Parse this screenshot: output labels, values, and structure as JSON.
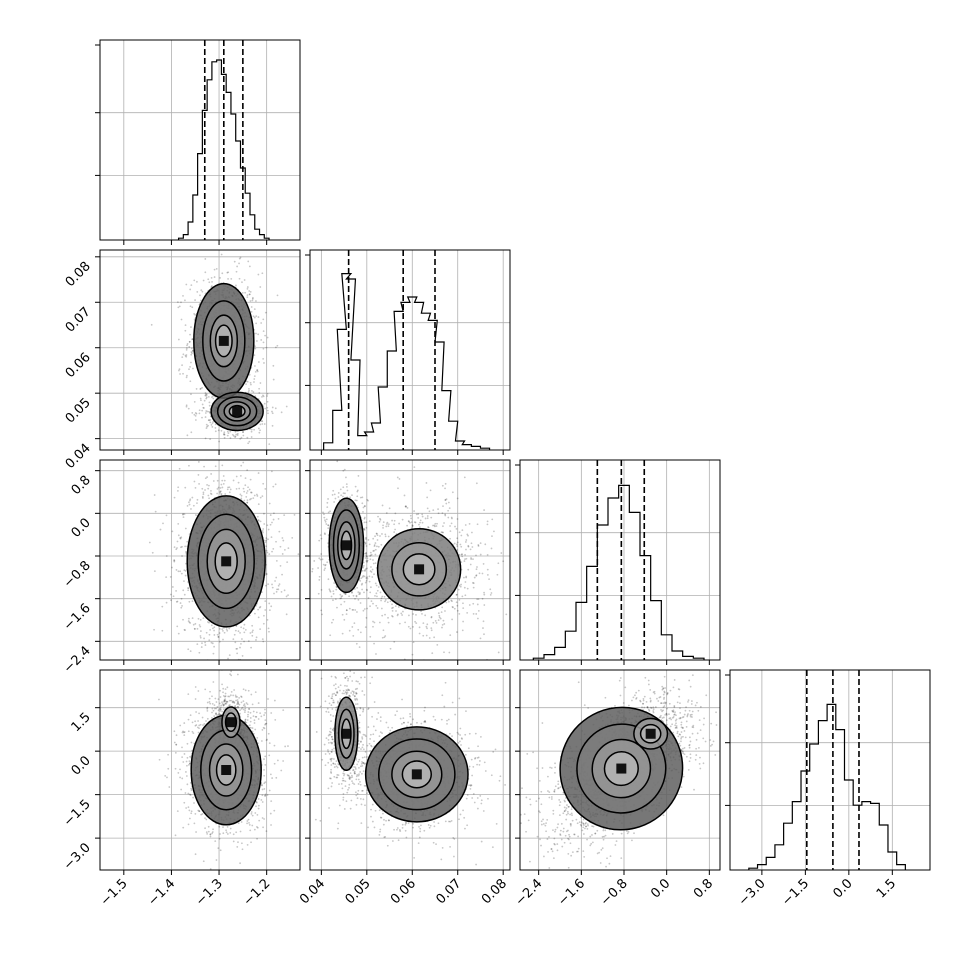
{
  "chart_data": {
    "type": "corner",
    "grid": true,
    "parameters": [
      {
        "ticks": [
          -1.5,
          -1.4,
          -1.3,
          -1.2
        ],
        "tick_labels": [
          "−1.5",
          "−1.4",
          "−1.3",
          "−1.2"
        ],
        "range": [
          -1.55,
          -1.13
        ],
        "quantiles": [
          -1.33,
          -1.29,
          -1.25
        ],
        "hist": [
          {
            "x": -1.38,
            "y": 0.01
          },
          {
            "x": -1.37,
            "y": 0.03
          },
          {
            "x": -1.36,
            "y": 0.1
          },
          {
            "x": -1.35,
            "y": 0.25
          },
          {
            "x": -1.34,
            "y": 0.48
          },
          {
            "x": -1.33,
            "y": 0.72
          },
          {
            "x": -1.32,
            "y": 0.89
          },
          {
            "x": -1.31,
            "y": 0.99
          },
          {
            "x": -1.3,
            "y": 1.0
          },
          {
            "x": -1.29,
            "y": 0.92
          },
          {
            "x": -1.28,
            "y": 0.82
          },
          {
            "x": -1.27,
            "y": 0.7
          },
          {
            "x": -1.26,
            "y": 0.55
          },
          {
            "x": -1.25,
            "y": 0.4
          },
          {
            "x": -1.24,
            "y": 0.26
          },
          {
            "x": -1.23,
            "y": 0.14
          },
          {
            "x": -1.22,
            "y": 0.06
          },
          {
            "x": -1.21,
            "y": 0.03
          },
          {
            "x": -1.2,
            "y": 0.01
          }
        ]
      },
      {
        "ticks": [
          0.04,
          0.05,
          0.06,
          0.07,
          0.08
        ],
        "tick_labels": [
          "0.04",
          "0.05",
          "0.06",
          "0.07",
          "0.08"
        ],
        "range": [
          0.0375,
          0.0815
        ],
        "quantiles": [
          0.046,
          0.058,
          0.065
        ],
        "hist": [
          {
            "x": 0.0415,
            "y": 0.04
          },
          {
            "x": 0.0435,
            "y": 0.22
          },
          {
            "x": 0.0445,
            "y": 0.67
          },
          {
            "x": 0.0455,
            "y": 0.98
          },
          {
            "x": 0.0465,
            "y": 0.95
          },
          {
            "x": 0.0475,
            "y": 0.5
          },
          {
            "x": 0.049,
            "y": 0.08
          },
          {
            "x": 0.0505,
            "y": 0.1
          },
          {
            "x": 0.052,
            "y": 0.15
          },
          {
            "x": 0.0535,
            "y": 0.35
          },
          {
            "x": 0.0555,
            "y": 0.55
          },
          {
            "x": 0.057,
            "y": 0.77
          },
          {
            "x": 0.0585,
            "y": 0.82
          },
          {
            "x": 0.06,
            "y": 0.85
          },
          {
            "x": 0.0615,
            "y": 0.82
          },
          {
            "x": 0.063,
            "y": 0.76
          },
          {
            "x": 0.0645,
            "y": 0.72
          },
          {
            "x": 0.066,
            "y": 0.6
          },
          {
            "x": 0.0675,
            "y": 0.33
          },
          {
            "x": 0.069,
            "y": 0.16
          },
          {
            "x": 0.0705,
            "y": 0.05
          },
          {
            "x": 0.072,
            "y": 0.03
          },
          {
            "x": 0.074,
            "y": 0.02
          },
          {
            "x": 0.076,
            "y": 0.01
          }
        ]
      },
      {
        "ticks": [
          -2.4,
          -1.6,
          -0.8,
          0.0,
          0.8
        ],
        "tick_labels": [
          "−2.4",
          "−1.6",
          "−0.8",
          "0.0",
          "0.8"
        ],
        "range": [
          -2.75,
          1.0
        ],
        "quantiles": [
          -1.3,
          -0.85,
          -0.42
        ],
        "hist": [
          {
            "x": -2.4,
            "y": 0.01
          },
          {
            "x": -2.2,
            "y": 0.03
          },
          {
            "x": -2.0,
            "y": 0.07
          },
          {
            "x": -1.8,
            "y": 0.16
          },
          {
            "x": -1.6,
            "y": 0.32
          },
          {
            "x": -1.4,
            "y": 0.52
          },
          {
            "x": -1.2,
            "y": 0.75
          },
          {
            "x": -1.0,
            "y": 0.9
          },
          {
            "x": -0.8,
            "y": 0.97
          },
          {
            "x": -0.6,
            "y": 0.82
          },
          {
            "x": -0.4,
            "y": 0.58
          },
          {
            "x": -0.2,
            "y": 0.33
          },
          {
            "x": 0.0,
            "y": 0.14
          },
          {
            "x": 0.2,
            "y": 0.05
          },
          {
            "x": 0.4,
            "y": 0.02
          },
          {
            "x": 0.6,
            "y": 0.01
          }
        ]
      },
      {
        "ticks": [
          -3.0,
          -1.5,
          0.0,
          1.5
        ],
        "tick_labels": [
          "−3.0",
          "−1.5",
          "0.0",
          "1.5"
        ],
        "range": [
          -4.1,
          2.8
        ],
        "quantiles": [
          -1.45,
          -0.55,
          0.35
        ],
        "hist": [
          {
            "x": -3.3,
            "y": 0.01
          },
          {
            "x": -3.0,
            "y": 0.03
          },
          {
            "x": -2.7,
            "y": 0.07
          },
          {
            "x": -2.4,
            "y": 0.14
          },
          {
            "x": -2.1,
            "y": 0.26
          },
          {
            "x": -1.8,
            "y": 0.38
          },
          {
            "x": -1.5,
            "y": 0.55
          },
          {
            "x": -1.2,
            "y": 0.7
          },
          {
            "x": -0.9,
            "y": 0.83
          },
          {
            "x": -0.6,
            "y": 0.92
          },
          {
            "x": -0.3,
            "y": 0.78
          },
          {
            "x": 0.0,
            "y": 0.5
          },
          {
            "x": 0.3,
            "y": 0.36
          },
          {
            "x": 0.6,
            "y": 0.38
          },
          {
            "x": 0.9,
            "y": 0.37
          },
          {
            "x": 1.2,
            "y": 0.25
          },
          {
            "x": 1.5,
            "y": 0.1
          },
          {
            "x": 1.8,
            "y": 0.03
          }
        ]
      }
    ],
    "scatter_blobs": [
      {
        "row": 1,
        "col": 0,
        "blobs": [
          {
            "cx": -1.29,
            "cy": 0.0615,
            "sx": 0.03,
            "sy": 0.006,
            "w": 0.6,
            "levels": [
              0.55,
              0.9,
              1.4,
              2.0
            ]
          },
          {
            "cx": -1.262,
            "cy": 0.046,
            "sx": 0.026,
            "sy": 0.002,
            "w": 0.4,
            "levels": [
              0.6,
              1.0,
              1.5,
              2.0
            ]
          }
        ]
      },
      {
        "row": 2,
        "col": 0,
        "blobs": [
          {
            "cx": -1.285,
            "cy": -0.9,
            "sx": 0.04,
            "sy": 0.6,
            "w": 1.0,
            "levels": [
              0.55,
              0.95,
              1.4,
              1.95
            ]
          }
        ]
      },
      {
        "row": 2,
        "col": 1,
        "blobs": [
          {
            "cx": 0.0455,
            "cy": -0.6,
            "sx": 0.0018,
            "sy": 0.42,
            "w": 0.4,
            "levels": [
              0.6,
              1.0,
              1.5,
              2.0
            ]
          },
          {
            "cx": 0.0615,
            "cy": -1.05,
            "sx": 0.006,
            "sy": 0.5,
            "w": 0.6,
            "levels": [
              0.55,
              0.95,
              1.45
            ]
          }
        ]
      },
      {
        "row": 3,
        "col": 0,
        "blobs": [
          {
            "cx": -1.285,
            "cy": -0.65,
            "sx": 0.035,
            "sy": 0.9,
            "w": 0.75,
            "levels": [
              0.55,
              0.95,
              1.45,
              2.0
            ]
          },
          {
            "cx": -1.275,
            "cy": 1.0,
            "sx": 0.018,
            "sy": 0.5,
            "w": 0.25,
            "levels": [
              0.6,
              1.0
            ]
          }
        ]
      },
      {
        "row": 3,
        "col": 1,
        "blobs": [
          {
            "cx": 0.0455,
            "cy": 0.6,
            "sx": 0.0016,
            "sy": 0.8,
            "w": 0.4,
            "levels": [
              0.6,
              1.0,
              1.5
            ]
          },
          {
            "cx": 0.061,
            "cy": -0.8,
            "sx": 0.0055,
            "sy": 0.8,
            "w": 0.6,
            "levels": [
              0.55,
              0.95,
              1.45,
              1.95
            ]
          }
        ]
      },
      {
        "row": 3,
        "col": 2,
        "blobs": [
          {
            "cx": -0.85,
            "cy": -0.6,
            "sx": 0.55,
            "sy": 1.0,
            "rho": 0.6,
            "w": 1.0,
            "levels": [
              0.55,
              0.95,
              1.45,
              2.0
            ]
          },
          {
            "cx": -0.3,
            "cy": 0.6,
            "sx": 0.3,
            "sy": 0.5,
            "w": 0.2,
            "levels": [
              0.6,
              1.0
            ]
          }
        ]
      }
    ]
  }
}
